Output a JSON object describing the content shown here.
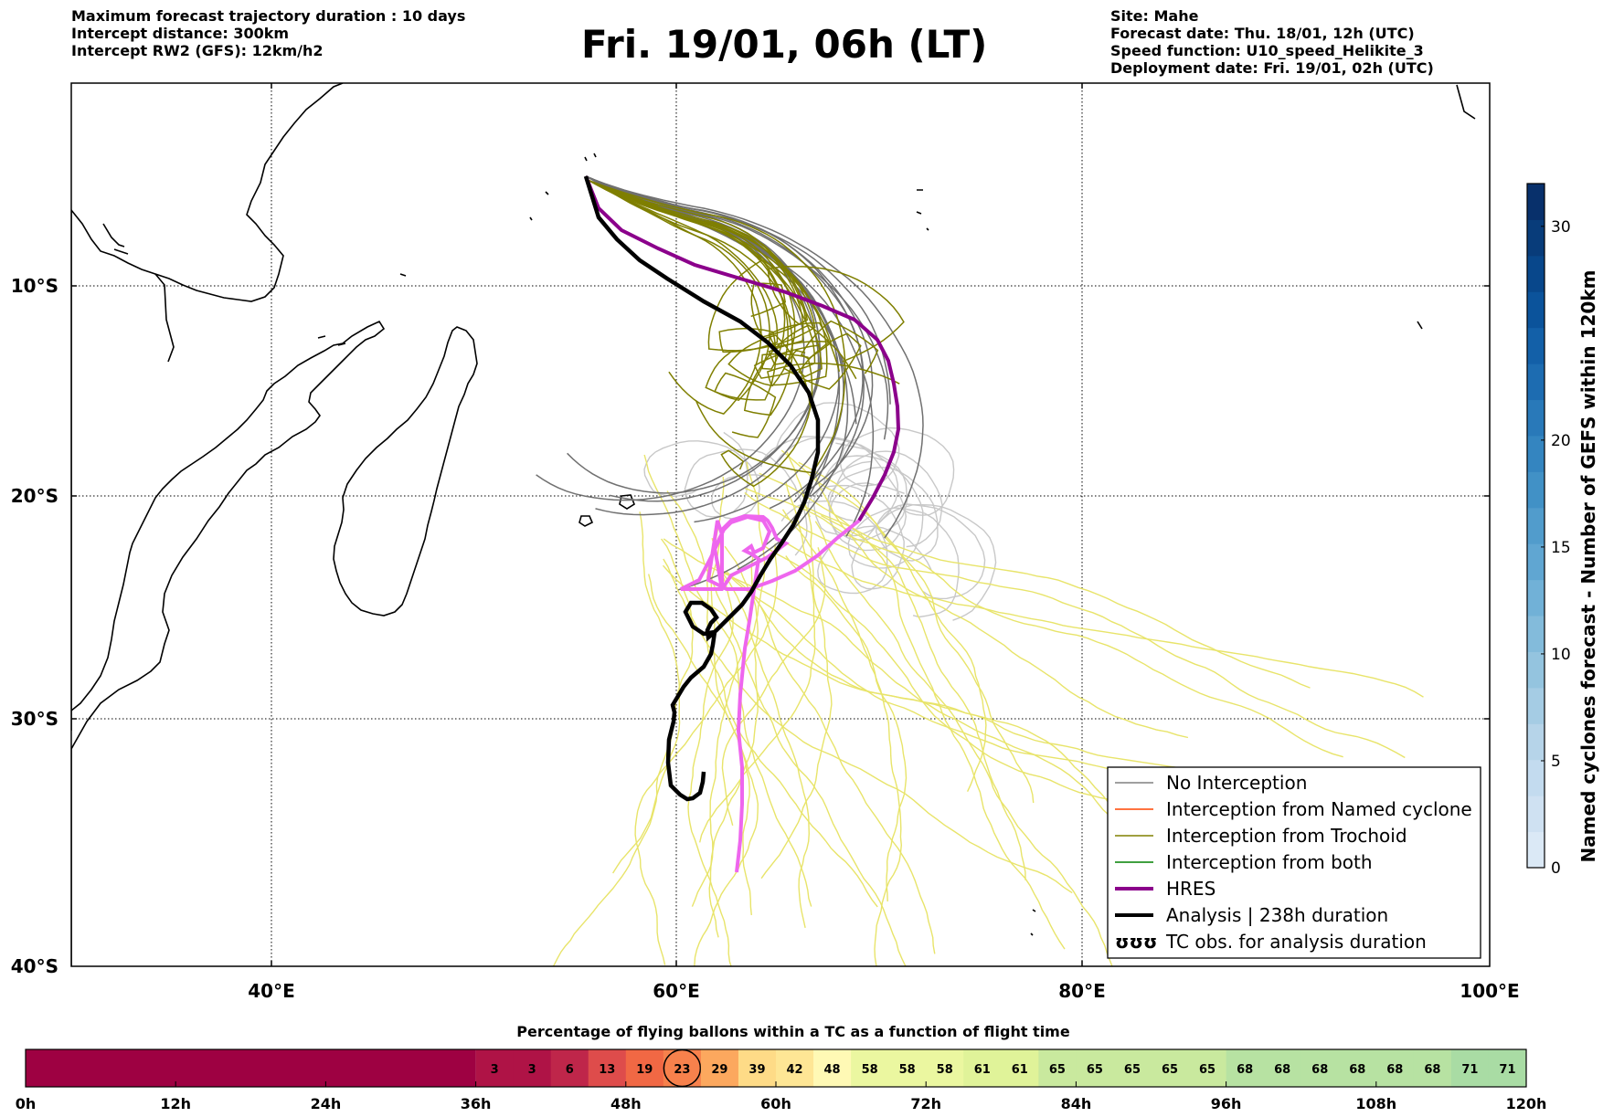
{
  "header": {
    "left_lines": [
      "Maximum forecast trajectory duration : 10 days",
      "Intercept distance: 300km",
      "Intercept RW2 (GFS):  12km/h2"
    ],
    "title": "Fri. 19/01, 06h (LT)",
    "right_lines": [
      "Site: Mahe",
      "Forecast date: Thu. 18/01, 12h (UTC)",
      "Speed function: U10_speed_Helikite_3",
      "Deployment date: Fri. 19/01, 02h (UTC)"
    ]
  },
  "map": {
    "lon_range": [
      30,
      100
    ],
    "lat_range": [
      -40,
      -0.5
    ],
    "lon_ticks": [
      {
        "value": 40,
        "label": "40°E"
      },
      {
        "value": 60,
        "label": "60°E"
      },
      {
        "value": 80,
        "label": "80°E"
      },
      {
        "value": 100,
        "label": "100°E"
      }
    ],
    "lat_ticks": [
      {
        "value": -10,
        "label": "10°S"
      },
      {
        "value": -20,
        "label": "20°S"
      },
      {
        "value": -30,
        "label": "30°S"
      },
      {
        "value": -40,
        "label": "40°S"
      }
    ],
    "site": {
      "name": "Mahe",
      "lon": 55.5,
      "lat": -4.6
    }
  },
  "legend": {
    "items": [
      {
        "label": "No Interception",
        "color": "#808080",
        "style": "thin"
      },
      {
        "label": "Interception from Named cyclone",
        "color": "#ff4500",
        "style": "thin"
      },
      {
        "label": "Interception from Trochoid",
        "color": "#808000",
        "style": "thin"
      },
      {
        "label": "Interception from both",
        "color": "#008000",
        "style": "thin"
      },
      {
        "label": "HRES",
        "color": "#8b008b",
        "style": "thick"
      },
      {
        "label": "Analysis | 238h duration",
        "color": "#000000",
        "style": "thick"
      },
      {
        "label": "TC obs. for analysis duration",
        "color": "#000000",
        "style": "tc"
      }
    ],
    "tc_symbol": "ʊʊʊ"
  },
  "colorbar": {
    "label": "Named cyclones forecast - Number of GEFS within 120km",
    "ticks": [
      {
        "value": 0,
        "label": "0"
      },
      {
        "value": 5,
        "label": "5"
      },
      {
        "value": 10,
        "label": "10"
      },
      {
        "value": 15,
        "label": "15"
      },
      {
        "value": 20,
        "label": "20"
      },
      {
        "value": 30,
        "label": "30"
      }
    ],
    "colors": [
      "#dbe9f6",
      "#cfe1f2",
      "#c3dbef",
      "#b6d4e9",
      "#a5cce4",
      "#94c4df",
      "#83bbdb",
      "#71b1d7",
      "#60a6d2",
      "#519ccc",
      "#4191c6",
      "#3485c0",
      "#2979b9",
      "#1d6cb1",
      "#1360a8",
      "#0b539b",
      "#08478b",
      "#083c7a",
      "#08306b"
    ]
  },
  "flight_time": {
    "title": "Percentage of flying ballons within a TC as a function of flight time",
    "time_labels": [
      "0h",
      "12h",
      "24h",
      "36h",
      "48h",
      "60h",
      "72h",
      "84h",
      "96h",
      "108h",
      "120h"
    ],
    "hours": [
      36,
      39,
      42,
      45,
      48,
      51,
      54,
      57,
      60,
      63,
      66,
      69,
      72,
      75,
      78,
      81,
      84,
      87,
      90,
      93,
      96,
      99,
      102,
      105,
      108,
      111,
      114,
      117
    ],
    "percentages": [
      3,
      3,
      6,
      13,
      19,
      23,
      29,
      39,
      42,
      48,
      58,
      58,
      58,
      61,
      61,
      65,
      65,
      65,
      65,
      65,
      68,
      68,
      68,
      68,
      68,
      68,
      71,
      71
    ],
    "current_hour": 51,
    "zero_color": "#9e0142"
  }
}
